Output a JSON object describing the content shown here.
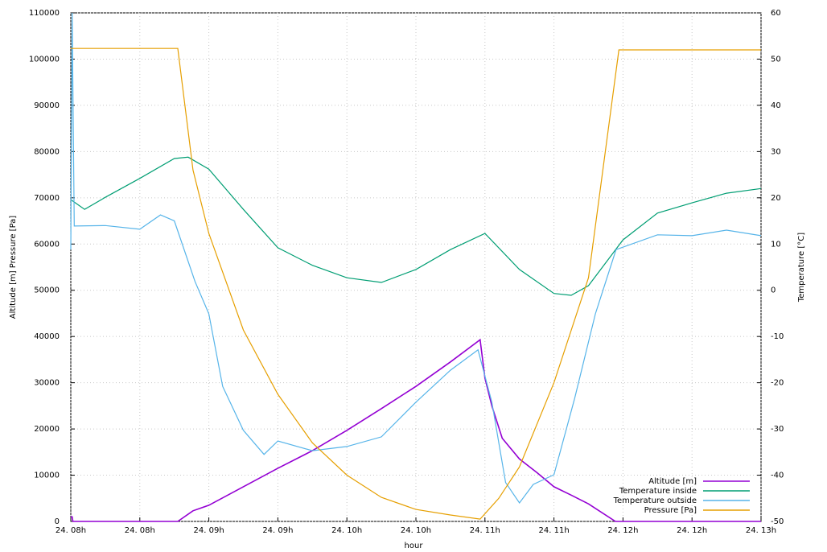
{
  "chart_data": {
    "type": "line",
    "xlabel": "hour",
    "ylabel": "Altitude [m] Pressure [Pa]",
    "y2label": "Temperature [°C]",
    "xlim": [
      0,
      10
    ],
    "xticks": [
      {
        "value": 0,
        "label": "24. 08h"
      },
      {
        "value": 1,
        "label": "24. 08h"
      },
      {
        "value": 2,
        "label": "24. 09h"
      },
      {
        "value": 3,
        "label": "24. 09h"
      },
      {
        "value": 4,
        "label": "24. 10h"
      },
      {
        "value": 5,
        "label": "24. 10h"
      },
      {
        "value": 6,
        "label": "24. 11h"
      },
      {
        "value": 7,
        "label": "24. 11h"
      },
      {
        "value": 8,
        "label": "24. 12h"
      },
      {
        "value": 9,
        "label": "24. 12h"
      },
      {
        "value": 10,
        "label": "24. 13h"
      }
    ],
    "ylim": [
      0,
      110000
    ],
    "yticks": [
      0,
      10000,
      20000,
      30000,
      40000,
      50000,
      60000,
      70000,
      80000,
      90000,
      100000,
      110000
    ],
    "y2lim": [
      -50,
      60
    ],
    "y2ticks": [
      -50,
      -40,
      -30,
      -20,
      -10,
      0,
      10,
      20,
      30,
      40,
      50,
      60
    ],
    "grid": true,
    "legend": "lower right",
    "series": [
      {
        "name": "Altitude [m]",
        "color": "#9400d3",
        "x": [
          0,
          0.02,
          0.03,
          1.55,
          1.77,
          2.0,
          2.5,
          3.0,
          3.5,
          4.0,
          4.5,
          5.0,
          5.5,
          5.93,
          6.0,
          6.1,
          6.25,
          6.5,
          6.75,
          7.0,
          7.25,
          7.5,
          7.89,
          10
        ],
        "values": [
          1000,
          1000,
          0,
          0,
          2300,
          3500,
          7500,
          11500,
          15300,
          19700,
          24400,
          29200,
          34500,
          39300,
          31000,
          25000,
          18000,
          13500,
          10600,
          7500,
          5700,
          3800,
          0,
          0
        ]
      },
      {
        "name": "Temperature inside",
        "color": "#009e73",
        "axis": "y2",
        "x": [
          0,
          0.2,
          0.5,
          1.0,
          1.5,
          1.7,
          2.0,
          2.5,
          3.0,
          3.5,
          4.0,
          4.5,
          5.0,
          5.5,
          6.0,
          6.5,
          7.0,
          7.25,
          7.5,
          8.0,
          8.5,
          9.0,
          9.5,
          10
        ],
        "values": [
          19.6,
          17.5,
          20.1,
          24.2,
          28.5,
          28.8,
          26.2,
          17.5,
          9.2,
          5.4,
          2.7,
          1.7,
          4.5,
          8.8,
          12.3,
          4.5,
          -0.7,
          -1.1,
          1.0,
          10.9,
          16.7,
          18.9,
          21,
          22
        ]
      },
      {
        "name": "Temperature outside",
        "color": "#56b4e9",
        "axis": "y2",
        "x": [
          0,
          0.02,
          0.05,
          0.5,
          1.0,
          1.3,
          1.5,
          1.8,
          2.0,
          2.2,
          2.5,
          2.8,
          3.0,
          3.5,
          4.0,
          4.5,
          5.0,
          5.5,
          5.9,
          6.1,
          6.3,
          6.5,
          6.7,
          7.0,
          7.3,
          7.6,
          7.9,
          8.5,
          9.0,
          9.5,
          10
        ],
        "values": [
          8.8,
          60,
          13.9,
          14,
          13.2,
          16.3,
          15,
          1.9,
          -5.1,
          -20.8,
          -30.3,
          -35.5,
          -32.6,
          -34.7,
          -33.8,
          -31.7,
          -24.2,
          -17.3,
          -12.9,
          -24.2,
          -41.6,
          -46,
          -42,
          -39.9,
          -23.4,
          -5.1,
          8.8,
          12,
          11.8,
          13,
          11.8
        ]
      },
      {
        "name": "Pressure [Pa]",
        "color": "#e69f00",
        "x": [
          0,
          1.55,
          1.77,
          2.0,
          2.5,
          3.0,
          3.5,
          4.0,
          4.5,
          5.0,
          5.5,
          5.93,
          6.2,
          6.5,
          7.0,
          7.5,
          7.94,
          10
        ],
        "values": [
          102300,
          102300,
          76000,
          62300,
          41400,
          27500,
          17000,
          10000,
          5200,
          2600,
          1400,
          500,
          5000,
          11800,
          30000,
          52700,
          102000,
          102000
        ]
      }
    ]
  }
}
